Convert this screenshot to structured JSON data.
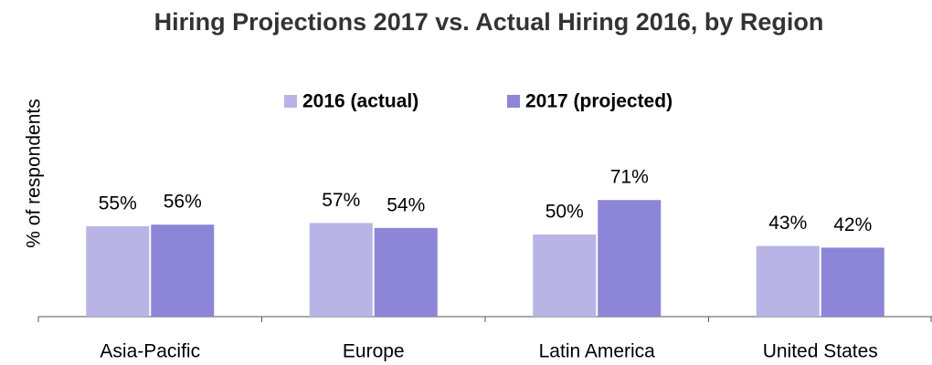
{
  "chart_data": {
    "type": "bar",
    "title": "Hiring Projections 2017 vs. Actual Hiring 2016, by Region",
    "y_label": "% of respondents",
    "categories": [
      "Asia-Pacific",
      "Europe",
      "Latin America",
      "United States"
    ],
    "series": [
      {
        "name": "2016 (actual)",
        "color": "#b8b4e6",
        "values": [
          55,
          57,
          50,
          43
        ],
        "value_labels": [
          "55%",
          "57%",
          "50%",
          "43%"
        ]
      },
      {
        "name": "2017 (projected)",
        "color": "#8c85d8",
        "values": [
          56,
          54,
          71,
          42
        ],
        "value_labels": [
          "56%",
          "54%",
          "71%",
          "42%"
        ]
      }
    ],
    "ylim": [
      0,
      100
    ],
    "legend": "top",
    "grid": false
  }
}
